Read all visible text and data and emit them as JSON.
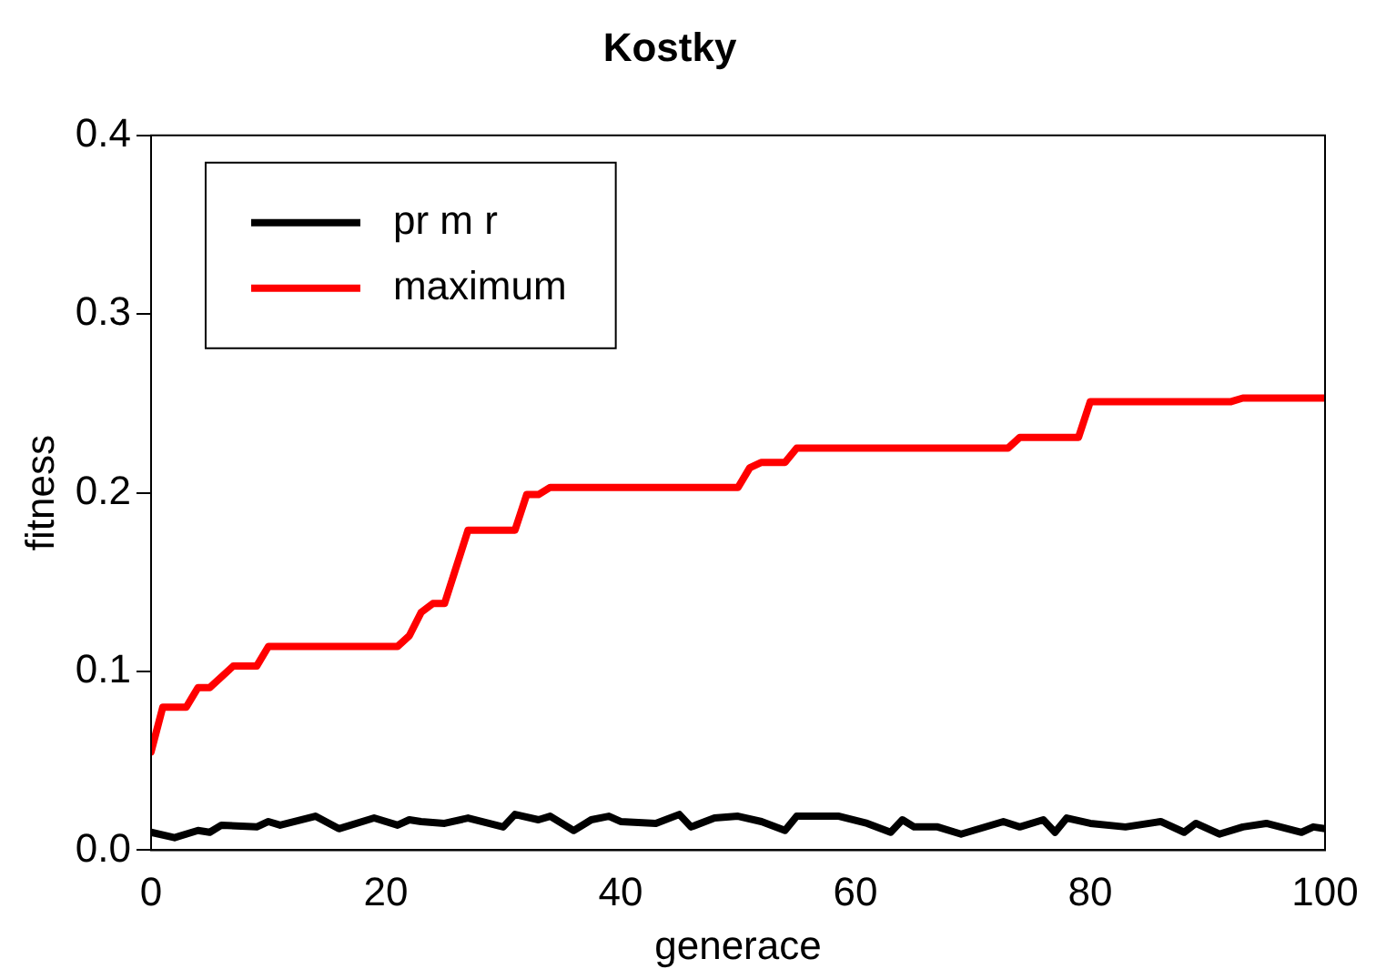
{
  "chart_data": {
    "type": "line",
    "title": "Kostky",
    "xlabel": "generace",
    "ylabel": "fitness",
    "xlim": [
      0,
      100
    ],
    "xticks": [
      0,
      20,
      40,
      60,
      80,
      100
    ],
    "ylim": [
      0,
      0.4
    ],
    "yticks": [
      {
        "value": 0,
        "label": "0.0"
      },
      {
        "value": 0.1,
        "label": "0.1"
      },
      {
        "value": 0.2,
        "label": "0.2"
      },
      {
        "value": 0.3,
        "label": "0.3"
      },
      {
        "value": 0.4,
        "label": "0.4"
      }
    ],
    "grid": false,
    "legend": "top left",
    "marker": "none",
    "line_style": "solid",
    "series": [
      {
        "name": "pr m r",
        "color": "#000000",
        "x": [
          0,
          2,
          4,
          5,
          6,
          9,
          10,
          11,
          14,
          16,
          19,
          21,
          22,
          23,
          25,
          27,
          30,
          31,
          33,
          34,
          36,
          37.5,
          39,
          40,
          43,
          45,
          46,
          48,
          50,
          52,
          54,
          55,
          58.6,
          61,
          63,
          64,
          65,
          67,
          69,
          72.6,
          74,
          76,
          77,
          78,
          80,
          83,
          86,
          88,
          89,
          91,
          93,
          95,
          98,
          99,
          100
        ],
        "values": [
          0.01,
          0.007,
          0.011,
          0.01,
          0.014,
          0.013,
          0.016,
          0.014,
          0.019,
          0.012,
          0.018,
          0.014,
          0.017,
          0.016,
          0.015,
          0.018,
          0.013,
          0.02,
          0.017,
          0.019,
          0.011,
          0.017,
          0.019,
          0.016,
          0.015,
          0.02,
          0.013,
          0.018,
          0.019,
          0.016,
          0.011,
          0.019,
          0.019,
          0.015,
          0.01,
          0.017,
          0.013,
          0.013,
          0.009,
          0.016,
          0.013,
          0.017,
          0.01,
          0.018,
          0.015,
          0.013,
          0.016,
          0.01,
          0.015,
          0.009,
          0.013,
          0.015,
          0.01,
          0.013,
          0.012
        ]
      },
      {
        "name": "maximum",
        "color": "#ff0000",
        "x": [
          0,
          1,
          3,
          4,
          5,
          7,
          9,
          10,
          21,
          22,
          23,
          24,
          25,
          27,
          31,
          32,
          33,
          34,
          50,
          51,
          52,
          54,
          55,
          73,
          74,
          79,
          80,
          92,
          93,
          100
        ],
        "values": [
          0.055,
          0.08,
          0.08,
          0.091,
          0.091,
          0.103,
          0.103,
          0.114,
          0.114,
          0.12,
          0.133,
          0.138,
          0.138,
          0.179,
          0.179,
          0.199,
          0.199,
          0.203,
          0.203,
          0.214,
          0.217,
          0.217,
          0.225,
          0.225,
          0.231,
          0.231,
          0.251,
          0.251,
          0.253,
          0.253
        ]
      }
    ]
  }
}
